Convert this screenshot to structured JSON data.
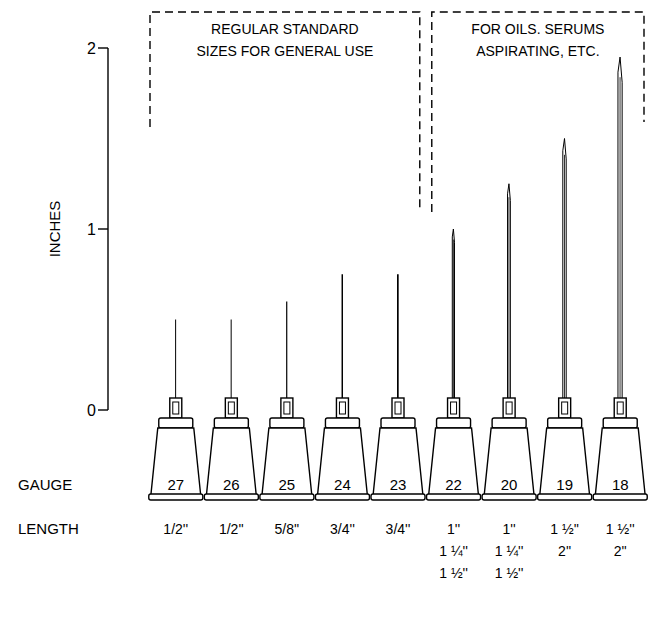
{
  "chart_data": {
    "type": "bar",
    "y_label": "INCHES",
    "x_label": "GAUGE",
    "categories": [
      "27",
      "26",
      "25",
      "24",
      "23",
      "22",
      "20",
      "19",
      "18"
    ],
    "values": [
      0.5,
      0.5,
      0.6,
      0.75,
      0.75,
      1,
      1.25,
      1.5,
      1.95
    ],
    "ylim": [
      0,
      2
    ],
    "yticks": [
      0,
      1,
      2
    ],
    "color": "#000000",
    "length_label": "LENGTH",
    "lengths": [
      [
        "1/2''"
      ],
      [
        "1/2''"
      ],
      [
        "5/8''"
      ],
      [
        "3/4''"
      ],
      [
        "3/4''"
      ],
      [
        "1''",
        "1 ¼''",
        "1 ½''"
      ],
      [
        "1''",
        "1 ¼''",
        "1 ½''"
      ],
      [
        "1 ½''",
        "2''"
      ],
      [
        "1 ½''",
        "2''"
      ]
    ],
    "groups": [
      {
        "label": [
          "REGULAR STANDARD",
          "SIZES FOR GENERAL USE"
        ],
        "categories": [
          "27",
          "26",
          "25",
          "24",
          "23"
        ]
      },
      {
        "label": [
          "FOR OILS. SERUMS",
          "ASPIRATING, ETC."
        ],
        "categories": [
          "22",
          "20",
          "19",
          "18"
        ]
      }
    ]
  }
}
